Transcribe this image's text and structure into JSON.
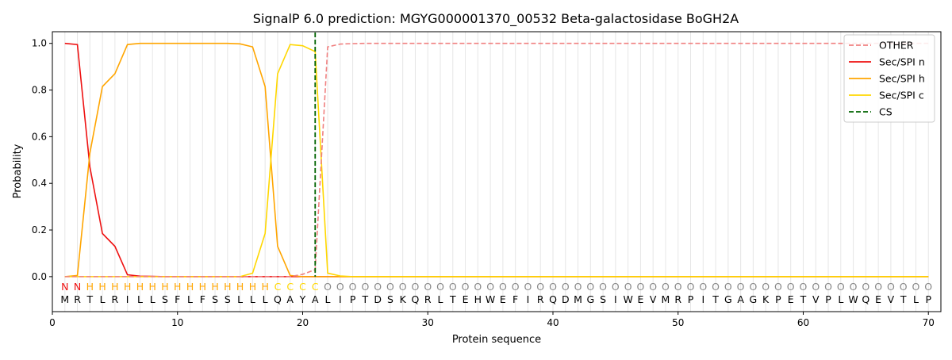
{
  "chart_data": {
    "type": "line",
    "title": "SignalP 6.0 prediction: MGYG000001370_00532 Beta-galactosidase BoGH2A",
    "xlabel": "Protein sequence",
    "ylabel": "Probability",
    "xlim": [
      0,
      71
    ],
    "ylim": [
      -0.15,
      1.05
    ],
    "xticks": [
      0,
      10,
      20,
      30,
      40,
      50,
      60,
      70
    ],
    "yticks": [
      0.0,
      0.2,
      0.4,
      0.6,
      0.8,
      1.0
    ],
    "ytick_labels": [
      "0.0",
      "0.2",
      "0.4",
      "0.6",
      "0.8",
      "1.0"
    ],
    "grid": "vertical lines at each residue",
    "legend_position": "top-right",
    "sequence": "MRTLRILLSFLFSSLLLQAYALIPTDSKQRLTEHWEFIRQDMGSIWEVMRPITGAGKPETVPLWQEVTLP",
    "labels": "NNHHHHHHHHHHHHHHHCCCCOOOOOOOOOOOOOOOOOOOOOOOOOOOOOOOOOOOOOOOOOOOOOOOOO",
    "label_colors": {
      "N": "#ee1111",
      "H": "#ffa500",
      "C": "#ffd700",
      "O": "#888888"
    },
    "cleavage_site": 21,
    "series": [
      {
        "name": "OTHER",
        "color": "#f08080",
        "dash": true,
        "values": [
          0.0,
          0.0,
          0.0,
          0.0,
          0.0,
          0.0,
          0.0,
          0.0,
          0.0,
          0.0,
          0.0,
          0.0,
          0.0,
          0.0,
          0.0,
          0.0,
          0.0,
          0.0,
          0.0,
          0.01,
          0.03,
          0.985,
          0.997,
          0.999,
          1.0,
          1.0,
          1.0,
          1.0,
          1.0,
          1.0,
          1.0,
          1.0,
          1.0,
          1.0,
          1.0,
          1.0,
          1.0,
          1.0,
          1.0,
          1.0,
          1.0,
          1.0,
          1.0,
          1.0,
          1.0,
          1.0,
          1.0,
          1.0,
          1.0,
          1.0,
          1.0,
          1.0,
          1.0,
          1.0,
          1.0,
          1.0,
          1.0,
          1.0,
          1.0,
          1.0,
          1.0,
          1.0,
          1.0,
          1.0,
          1.0,
          1.0,
          1.0,
          1.0,
          1.0,
          1.0
        ]
      },
      {
        "name": "Sec/SPI n",
        "color": "#ee1111",
        "dash": false,
        "values": [
          1.0,
          0.995,
          0.47,
          0.185,
          0.13,
          0.008,
          0.002,
          0.001,
          0.0,
          0.0,
          0.0,
          0.0,
          0.0,
          0.0,
          0.0,
          0.0,
          0.0,
          0.0,
          0.0,
          0.0,
          0.0,
          0.0,
          0.0,
          0.0,
          0.0,
          0.0,
          0.0,
          0.0,
          0.0,
          0.0,
          0.0,
          0.0,
          0.0,
          0.0,
          0.0,
          0.0,
          0.0,
          0.0,
          0.0,
          0.0,
          0.0,
          0.0,
          0.0,
          0.0,
          0.0,
          0.0,
          0.0,
          0.0,
          0.0,
          0.0,
          0.0,
          0.0,
          0.0,
          0.0,
          0.0,
          0.0,
          0.0,
          0.0,
          0.0,
          0.0,
          0.0,
          0.0,
          0.0,
          0.0,
          0.0,
          0.0,
          0.0,
          0.0,
          0.0,
          0.0
        ]
      },
      {
        "name": "Sec/SPI h",
        "color": "#ffa500",
        "dash": false,
        "values": [
          0.0,
          0.005,
          0.53,
          0.815,
          0.87,
          0.995,
          1.0,
          1.0,
          1.0,
          1.0,
          1.0,
          1.0,
          1.0,
          1.0,
          0.998,
          0.985,
          0.815,
          0.13,
          0.005,
          0.0,
          0.0,
          0.0,
          0.0,
          0.0,
          0.0,
          0.0,
          0.0,
          0.0,
          0.0,
          0.0,
          0.0,
          0.0,
          0.0,
          0.0,
          0.0,
          0.0,
          0.0,
          0.0,
          0.0,
          0.0,
          0.0,
          0.0,
          0.0,
          0.0,
          0.0,
          0.0,
          0.0,
          0.0,
          0.0,
          0.0,
          0.0,
          0.0,
          0.0,
          0.0,
          0.0,
          0.0,
          0.0,
          0.0,
          0.0,
          0.0,
          0.0,
          0.0,
          0.0,
          0.0,
          0.0,
          0.0,
          0.0,
          0.0,
          0.0,
          0.0
        ]
      },
      {
        "name": "Sec/SPI c",
        "color": "#ffd700",
        "dash": false,
        "values": [
          0.0,
          0.0,
          0.0,
          0.0,
          0.0,
          0.0,
          0.0,
          0.0,
          0.0,
          0.0,
          0.0,
          0.0,
          0.0,
          0.0,
          0.0,
          0.015,
          0.185,
          0.87,
          0.995,
          0.99,
          0.965,
          0.015,
          0.003,
          0.0,
          0.0,
          0.0,
          0.0,
          0.0,
          0.0,
          0.0,
          0.0,
          0.0,
          0.0,
          0.0,
          0.0,
          0.0,
          0.0,
          0.0,
          0.0,
          0.0,
          0.0,
          0.0,
          0.0,
          0.0,
          0.0,
          0.0,
          0.0,
          0.0,
          0.0,
          0.0,
          0.0,
          0.0,
          0.0,
          0.0,
          0.0,
          0.0,
          0.0,
          0.0,
          0.0,
          0.0,
          0.0,
          0.0,
          0.0,
          0.0,
          0.0,
          0.0,
          0.0,
          0.0,
          0.0,
          0.0
        ]
      }
    ],
    "cs_legend": {
      "name": "CS",
      "color": "#006400",
      "dash": true
    }
  }
}
